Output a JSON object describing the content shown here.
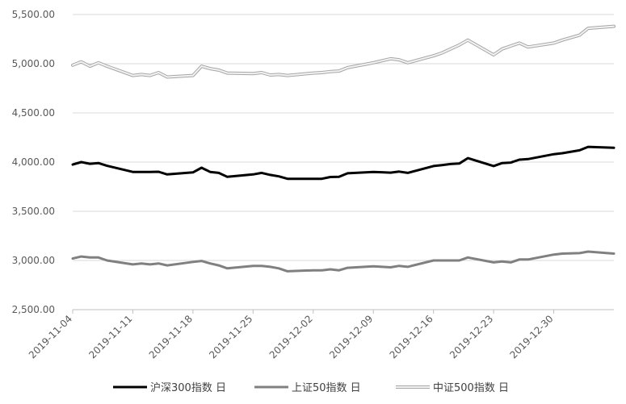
{
  "chart_data": {
    "type": "line",
    "title": "",
    "xlabel": "",
    "ylabel": "",
    "ylim": [
      2500,
      5500
    ],
    "y_ticks": [
      "2,500.00",
      "3,000.00",
      "3,500.00",
      "4,000.00",
      "4,500.00",
      "5,000.00",
      "5,500.00"
    ],
    "x_ticks": [
      "2019-11-04",
      "2019-11-11",
      "2019-11-18",
      "2019-11-25",
      "2019-12-02",
      "2019-12-09",
      "2019-12-16",
      "2019-12-23",
      "2019-12-30"
    ],
    "grid": "horizontal",
    "legend_position": "bottom",
    "x": [
      "2019-11-04",
      "2019-11-05",
      "2019-11-06",
      "2019-11-07",
      "2019-11-08",
      "2019-11-11",
      "2019-11-12",
      "2019-11-13",
      "2019-11-14",
      "2019-11-15",
      "2019-11-18",
      "2019-11-19",
      "2019-11-20",
      "2019-11-21",
      "2019-11-22",
      "2019-11-25",
      "2019-11-26",
      "2019-11-27",
      "2019-11-28",
      "2019-11-29",
      "2019-12-02",
      "2019-12-03",
      "2019-12-04",
      "2019-12-05",
      "2019-12-06",
      "2019-12-09",
      "2019-12-10",
      "2019-12-11",
      "2019-12-12",
      "2019-12-13",
      "2019-12-16",
      "2019-12-17",
      "2019-12-18",
      "2019-12-19",
      "2019-12-20",
      "2019-12-23",
      "2019-12-24",
      "2019-12-25",
      "2019-12-26",
      "2019-12-27",
      "2019-12-30",
      "2019-12-31",
      "2020-01-02",
      "2020-01-03",
      "2020-01-06"
    ],
    "series": [
      {
        "name": "沪深300指数 日",
        "color": "#000000",
        "values": [
          3975,
          4000,
          3983,
          3990,
          3962,
          3900,
          3900,
          3900,
          3902,
          3875,
          3895,
          3943,
          3900,
          3890,
          3850,
          3875,
          3890,
          3870,
          3855,
          3830,
          3830,
          3830,
          3848,
          3850,
          3886,
          3900,
          3897,
          3893,
          3903,
          3890,
          3960,
          3970,
          3980,
          3985,
          4040,
          3960,
          3990,
          3995,
          4025,
          4030,
          4080,
          4090,
          4120,
          4155,
          4145
        ]
      },
      {
        "name": "上证50指数 日",
        "color": "#808080",
        "values": [
          3020,
          3040,
          3030,
          3030,
          3000,
          2960,
          2970,
          2960,
          2970,
          2950,
          2985,
          2995,
          2970,
          2950,
          2920,
          2945,
          2945,
          2935,
          2920,
          2890,
          2900,
          2900,
          2910,
          2900,
          2925,
          2940,
          2935,
          2930,
          2945,
          2935,
          3000,
          3000,
          3000,
          3000,
          3030,
          2980,
          2990,
          2980,
          3010,
          3010,
          3060,
          3070,
          3075,
          3090,
          3070
        ]
      },
      {
        "name": "中证500指数 日",
        "color": "#bfbfbf",
        "values": [
          4985,
          5020,
          4975,
          5010,
          4975,
          4880,
          4890,
          4880,
          4910,
          4865,
          4880,
          4975,
          4950,
          4935,
          4905,
          4900,
          4910,
          4885,
          4890,
          4880,
          4905,
          4910,
          4920,
          4925,
          4960,
          5010,
          5030,
          5050,
          5040,
          5010,
          5080,
          5110,
          5150,
          5190,
          5240,
          5090,
          5150,
          5180,
          5210,
          5170,
          5210,
          5240,
          5290,
          5360,
          5380
        ]
      }
    ]
  }
}
